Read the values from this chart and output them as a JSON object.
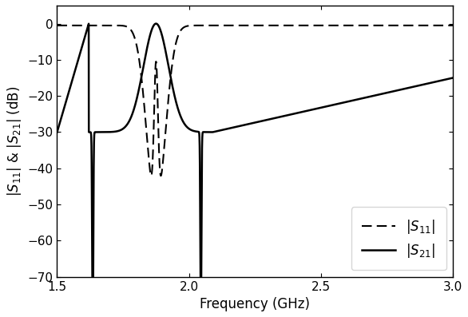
{
  "xlim": [
    1.5,
    3.0
  ],
  "ylim": [
    -70,
    5
  ],
  "yticks": [
    0,
    -10,
    -20,
    -30,
    -40,
    -50,
    -60,
    -70
  ],
  "xticks": [
    1.5,
    2.0,
    2.5,
    3.0
  ],
  "xlabel": "Frequency (GHz)",
  "ylabel": "$|S_{11}|$ & $|S_{21}|$ (dB)",
  "legend_s11": "$|S_{11}|$",
  "legend_s21": "$|S_{21}|$",
  "figsize": [
    5.86,
    3.97
  ],
  "dpi": 100
}
